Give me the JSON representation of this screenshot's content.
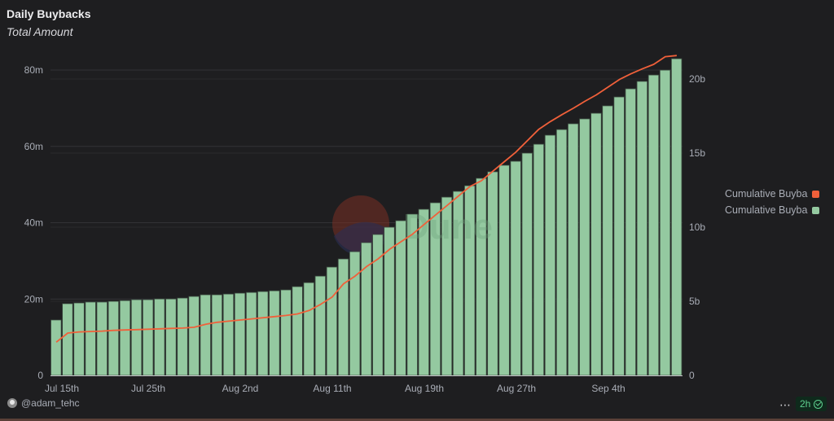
{
  "header": {
    "title": "Daily Buybacks",
    "subtitle": "Total Amount"
  },
  "legend": [
    {
      "label": "Cumulative Buyba",
      "color": "#f0603a"
    },
    {
      "label": "Cumulative Buyba",
      "color": "#94c9a0"
    }
  ],
  "watermark": "Dune",
  "footer": {
    "user": "@adam_tehc",
    "more_label": "⋯",
    "refresh_badge": "2h"
  },
  "colors": {
    "bar": "#94c9a0",
    "bar_stroke": "#3b4a3f",
    "line": "#f0603a",
    "grid": "#333336",
    "axis_text": "#a9adb6"
  },
  "chart_data": {
    "type": "bar+line",
    "title": "Daily Buybacks",
    "subtitle": "Total Amount",
    "xlabel": "",
    "x_tick_labels": [
      "Jul 15th",
      "Jul 25th",
      "Aug 2nd",
      "Aug 11th",
      "Aug 19th",
      "Aug 27th",
      "Sep 4th"
    ],
    "x_tick_indices": [
      0,
      8,
      16,
      24,
      32,
      40,
      48
    ],
    "left_axis": {
      "ticks": [
        "0",
        "20m",
        "40m",
        "60m",
        "80m"
      ],
      "values": [
        0,
        20,
        40,
        60,
        80
      ],
      "range": [
        0,
        80
      ],
      "unit": "m"
    },
    "right_axis": {
      "ticks": [
        "0",
        "5b",
        "10b",
        "15b",
        "20b"
      ],
      "values": [
        0,
        5,
        10,
        15,
        20
      ],
      "range": [
        0,
        20
      ],
      "unit": "b"
    },
    "grid": true,
    "legend_position": "right",
    "series": [
      {
        "name": "Cumulative Buyba (line, left axis, millions)",
        "type": "line",
        "axis": "left",
        "color": "#f0603a",
        "values": [
          8.7,
          11.1,
          11.4,
          11.5,
          11.6,
          11.8,
          11.9,
          12.0,
          12.1,
          12.2,
          12.3,
          12.4,
          12.6,
          13.4,
          13.9,
          14.2,
          14.5,
          14.8,
          15.1,
          15.4,
          15.7,
          16.1,
          17.0,
          18.6,
          20.5,
          24.0,
          26.0,
          28.5,
          30.5,
          33.0,
          35.0,
          37.0,
          39.5,
          42.0,
          44.5,
          47.0,
          49.5,
          51.0,
          53.5,
          56.0,
          58.5,
          61.5,
          64.5,
          66.5,
          68.3,
          70.0,
          71.8,
          73.5,
          75.5,
          77.5,
          79.0,
          80.3,
          81.5,
          83.5,
          83.8
        ]
      },
      {
        "name": "Cumulative Buyba (bars, right axis, billions)",
        "type": "bar",
        "axis": "right",
        "color": "#94c9a0",
        "values": [
          3.74,
          4.84,
          4.89,
          4.95,
          4.95,
          5.0,
          5.05,
          5.11,
          5.11,
          5.16,
          5.16,
          5.22,
          5.33,
          5.44,
          5.44,
          5.49,
          5.55,
          5.6,
          5.66,
          5.71,
          5.77,
          5.99,
          6.26,
          6.7,
          7.31,
          7.86,
          8.35,
          8.96,
          9.51,
          10.0,
          10.44,
          10.88,
          11.21,
          11.65,
          12.03,
          12.42,
          12.8,
          13.3,
          13.74,
          14.18,
          14.45,
          15.0,
          15.6,
          16.21,
          16.59,
          16.98,
          17.31,
          17.69,
          18.19,
          18.79,
          19.34,
          19.84,
          20.27,
          20.6,
          21.37
        ]
      }
    ]
  }
}
